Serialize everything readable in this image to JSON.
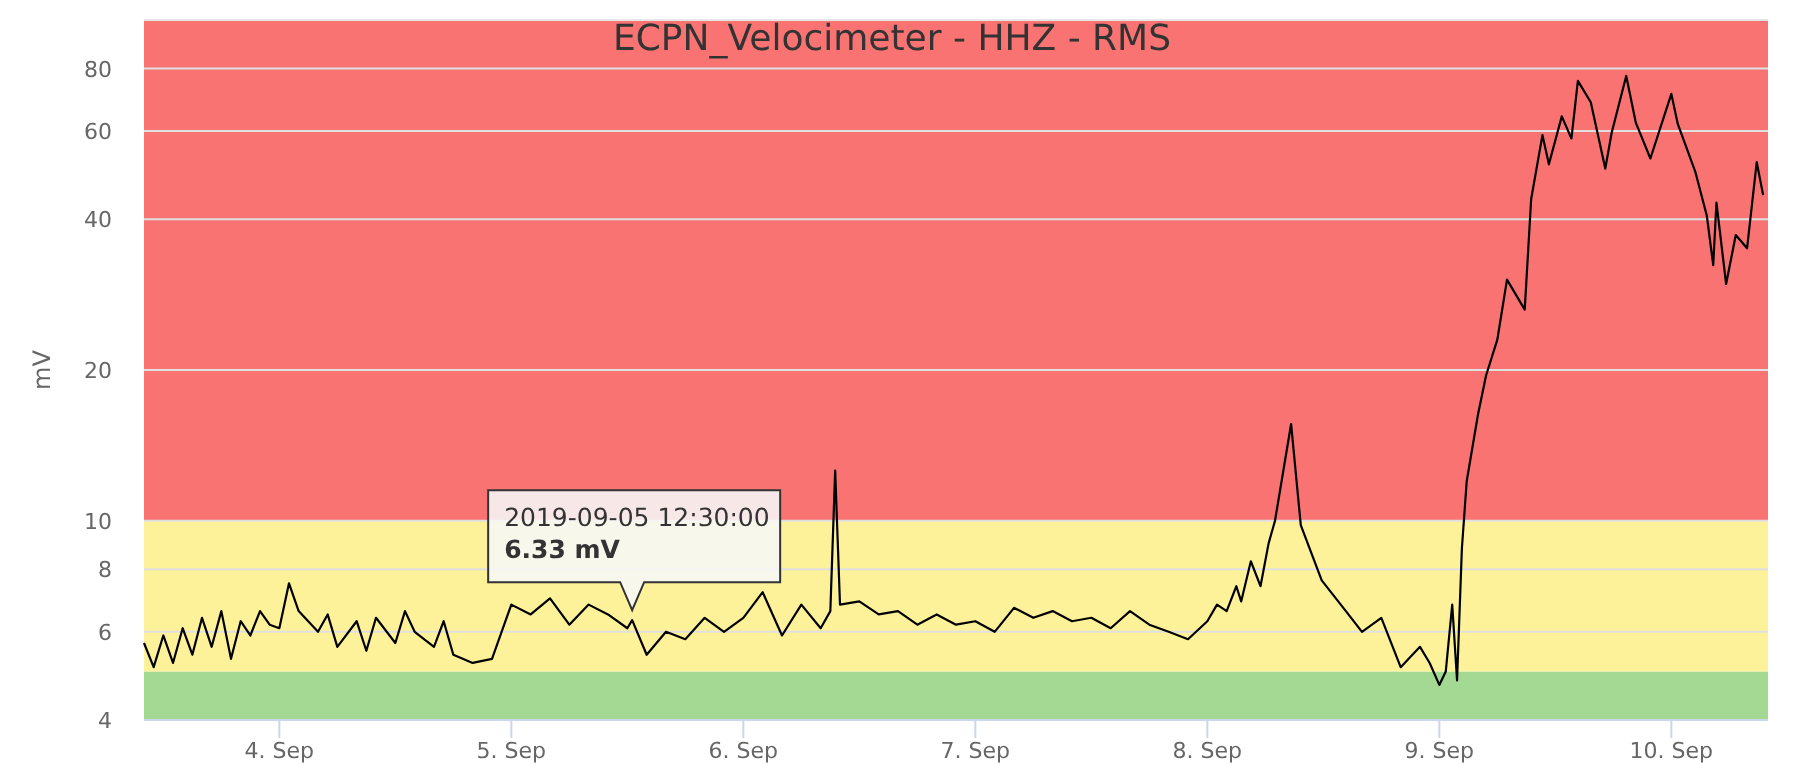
{
  "chart_data": {
    "type": "line",
    "title": "ECPN_Velocimeter - HHZ - RMS",
    "ylabel": "mV",
    "log": "y",
    "xlim": [
      "2019-09-03T10:00",
      "2019-09-10T10:00"
    ],
    "xticks": [
      {
        "value": "2019-09-04",
        "label": "4. Sep"
      },
      {
        "value": "2019-09-05",
        "label": "5. Sep"
      },
      {
        "value": "2019-09-06",
        "label": "6. Sep"
      },
      {
        "value": "2019-09-07",
        "label": "7. Sep"
      },
      {
        "value": "2019-09-08",
        "label": "8. Sep"
      },
      {
        "value": "2019-09-09",
        "label": "9. Sep"
      },
      {
        "value": "2019-09-10",
        "label": "10. Sep"
      }
    ],
    "ylim": [
      4,
      100
    ],
    "yticks": [
      4,
      6,
      8,
      10,
      20,
      40,
      60,
      80
    ],
    "grid": "y",
    "marker": "none",
    "line_style": "solid",
    "bands": [
      {
        "axis": "y",
        "from": 4,
        "to": 5,
        "color": "#a3d993"
      },
      {
        "axis": "y",
        "from": 5,
        "to": 10,
        "color": "#fdf29a"
      },
      {
        "axis": "y",
        "from": 10,
        "to": 100,
        "color": "#f97373"
      }
    ],
    "annotations": [
      {
        "text": "2019-09-05 12:30:00\n6.33 mV",
        "x": "2019-09-05T12:30",
        "y": 6.33
      }
    ],
    "series": [
      {
        "color": "#000000",
        "x": [
          "2019-09-03T10:00",
          "2019-09-03T11:00",
          "2019-09-03T12:00",
          "2019-09-03T13:00",
          "2019-09-03T14:00",
          "2019-09-03T15:00",
          "2019-09-03T16:00",
          "2019-09-03T17:00",
          "2019-09-03T18:00",
          "2019-09-03T19:00",
          "2019-09-03T20:00",
          "2019-09-03T21:00",
          "2019-09-03T22:00",
          "2019-09-03T23:00",
          "2019-09-04T00:00",
          "2019-09-04T01:00",
          "2019-09-04T02:00",
          "2019-09-04T04:00",
          "2019-09-04T05:00",
          "2019-09-04T06:00",
          "2019-09-04T08:00",
          "2019-09-04T09:00",
          "2019-09-04T10:00",
          "2019-09-04T12:00",
          "2019-09-04T13:00",
          "2019-09-04T14:00",
          "2019-09-04T16:00",
          "2019-09-04T17:00",
          "2019-09-04T18:00",
          "2019-09-04T20:00",
          "2019-09-04T22:00",
          "2019-09-05T00:00",
          "2019-09-05T02:00",
          "2019-09-05T04:00",
          "2019-09-05T06:00",
          "2019-09-05T08:00",
          "2019-09-05T10:00",
          "2019-09-05T12:00",
          "2019-09-05T12:30",
          "2019-09-05T14:00",
          "2019-09-05T16:00",
          "2019-09-05T18:00",
          "2019-09-05T20:00",
          "2019-09-05T22:00",
          "2019-09-06T00:00",
          "2019-09-06T02:00",
          "2019-09-06T04:00",
          "2019-09-06T06:00",
          "2019-09-06T08:00",
          "2019-09-06T09:00",
          "2019-09-06T09:30",
          "2019-09-06T10:00",
          "2019-09-06T12:00",
          "2019-09-06T14:00",
          "2019-09-06T16:00",
          "2019-09-06T18:00",
          "2019-09-06T20:00",
          "2019-09-06T22:00",
          "2019-09-07T00:00",
          "2019-09-07T02:00",
          "2019-09-07T04:00",
          "2019-09-07T06:00",
          "2019-09-07T08:00",
          "2019-09-07T10:00",
          "2019-09-07T12:00",
          "2019-09-07T14:00",
          "2019-09-07T16:00",
          "2019-09-07T18:00",
          "2019-09-07T20:00",
          "2019-09-07T22:00",
          "2019-09-08T00:00",
          "2019-09-08T01:00",
          "2019-09-08T02:00",
          "2019-09-08T03:00",
          "2019-09-08T03:30",
          "2019-09-08T04:30",
          "2019-09-08T05:30",
          "2019-09-08T06:20",
          "2019-09-08T07:00",
          "2019-09-08T08:40",
          "2019-09-08T09:40",
          "2019-09-08T11:50",
          "2019-09-08T14:20",
          "2019-09-08T16:00",
          "2019-09-08T18:00",
          "2019-09-08T20:00",
          "2019-09-08T22:00",
          "2019-09-08T23:00",
          "2019-09-09T00:00",
          "2019-09-09T00:40",
          "2019-09-09T01:20",
          "2019-09-09T01:50",
          "2019-09-09T02:20",
          "2019-09-09T02:50",
          "2019-09-09T04:00",
          "2019-09-09T04:50",
          "2019-09-09T06:00",
          "2019-09-09T07:00",
          "2019-09-09T08:50",
          "2019-09-09T09:30",
          "2019-09-09T10:40",
          "2019-09-09T11:20",
          "2019-09-09T12:40",
          "2019-09-09T13:40",
          "2019-09-09T14:20",
          "2019-09-09T15:40",
          "2019-09-09T17:10",
          "2019-09-09T17:50",
          "2019-09-09T19:20",
          "2019-09-09T20:20",
          "2019-09-09T21:50",
          "2019-09-10T00:00",
          "2019-09-10T00:40",
          "2019-09-10T02:30",
          "2019-09-10T03:40",
          "2019-09-10T04:20",
          "2019-09-10T04:40",
          "2019-09-10T05:40",
          "2019-09-10T06:40",
          "2019-09-10T07:50",
          "2019-09-10T08:50",
          "2019-09-10T09:30"
        ],
        "values": [
          5.7,
          5.1,
          5.9,
          5.2,
          6.1,
          5.4,
          6.4,
          5.6,
          6.6,
          5.3,
          6.3,
          5.9,
          6.6,
          6.2,
          6.1,
          7.5,
          6.6,
          6.0,
          6.5,
          5.6,
          6.3,
          5.5,
          6.4,
          5.7,
          6.6,
          6.0,
          5.6,
          6.3,
          5.4,
          5.2,
          5.3,
          6.8,
          6.5,
          7.0,
          6.2,
          6.8,
          6.5,
          6.1,
          6.33,
          5.4,
          6.0,
          5.8,
          6.4,
          6.0,
          6.4,
          7.2,
          5.9,
          6.8,
          6.1,
          6.6,
          12.6,
          6.8,
          6.9,
          6.5,
          6.6,
          6.2,
          6.5,
          6.2,
          6.3,
          6.0,
          6.7,
          6.4,
          6.6,
          6.3,
          6.4,
          6.1,
          6.6,
          6.2,
          6.0,
          5.8,
          6.3,
          6.8,
          6.6,
          7.4,
          6.9,
          8.3,
          7.4,
          9.0,
          10.0,
          15.6,
          9.8,
          7.6,
          6.6,
          6.0,
          6.4,
          5.1,
          5.6,
          5.2,
          4.7,
          5.0,
          6.8,
          4.8,
          8.8,
          12.0,
          16.3,
          19.5,
          23.0,
          30.3,
          26.4,
          43.9,
          58.9,
          51.5,
          64.2,
          58.0,
          75.6,
          68.5,
          50.5,
          59.6,
          77.3,
          62.3,
          52.9,
          71.2,
          62.0,
          49.6,
          40.7,
          32.4,
          43.2,
          29.7,
          37.2,
          35.0,
          52.0,
          44.7
        ]
      }
    ]
  }
}
